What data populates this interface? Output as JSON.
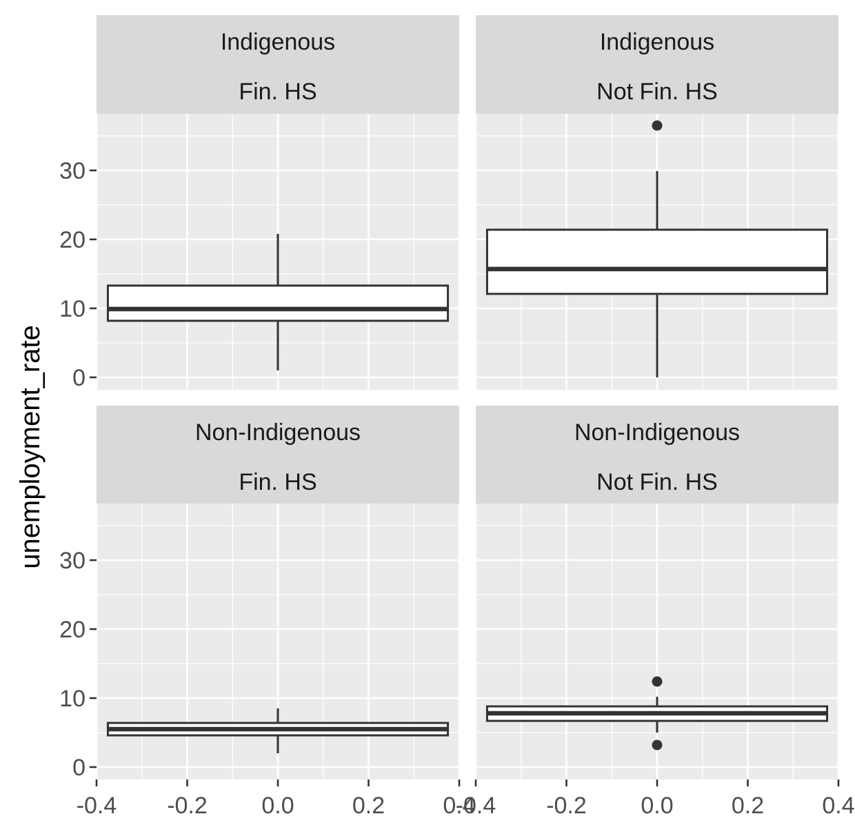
{
  "chart_data": {
    "type": "boxplot",
    "ylabel": "unemployment_rate",
    "xlabel": "",
    "xlim": [
      -0.4,
      0.4
    ],
    "ylim": [
      -1.8,
      38.2
    ],
    "x_ticks": [
      -0.4,
      -0.2,
      0.0,
      0.2,
      0.4
    ],
    "x_tick_labels": [
      "-0.4",
      "-0.2",
      "0.0",
      "0.2",
      "0.4"
    ],
    "y_ticks": [
      0,
      10,
      20,
      30
    ],
    "y_tick_labels": [
      "0",
      "10",
      "20",
      "30"
    ],
    "box_x_range": [
      -0.375,
      0.375
    ],
    "grid": true,
    "colors": {
      "panel_bg": "#ebebeb",
      "strip_bg": "#d9d9d9",
      "grid": "#ffffff",
      "box_fill": "#ffffff",
      "box_line": "#333333"
    },
    "panels": [
      {
        "strip": [
          "Indigenous",
          "Fin. HS"
        ],
        "box": {
          "lower_whisker": 1.0,
          "q1": 8.2,
          "median": 9.9,
          "q3": 13.3,
          "upper_whisker": 20.8
        },
        "outliers": []
      },
      {
        "strip": [
          "Indigenous",
          "Not Fin. HS"
        ],
        "box": {
          "lower_whisker": 0.0,
          "q1": 12.1,
          "median": 15.7,
          "q3": 21.4,
          "upper_whisker": 29.9
        },
        "outliers": [
          36.5
        ]
      },
      {
        "strip": [
          "Non-Indigenous",
          "Fin. HS"
        ],
        "box": {
          "lower_whisker": 2.0,
          "q1": 4.6,
          "median": 5.5,
          "q3": 6.4,
          "upper_whisker": 8.5
        },
        "outliers": []
      },
      {
        "strip": [
          "Non-Indigenous",
          "Not Fin. HS"
        ],
        "box": {
          "lower_whisker": 5.0,
          "q1": 6.7,
          "median": 7.8,
          "q3": 8.8,
          "upper_whisker": 10.2
        },
        "outliers": [
          12.4,
          3.2
        ]
      }
    ]
  }
}
